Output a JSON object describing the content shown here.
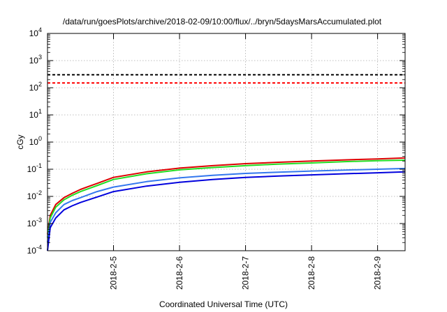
{
  "chart_data": {
    "type": "line",
    "title": "/data/run/goesPlots/archive/2018-02-09/10:00/flux/../bryn/5daysMarsAccumulated.plot",
    "xlabel": "Coordinated Universal Time (UTC)",
    "ylabel": "cGy",
    "yscale": "log",
    "ylim": [
      0.0001,
      10000
    ],
    "xlim": [
      "2018-02-04 00:00",
      "2018-02-09 10:00"
    ],
    "grid": true,
    "x_ticks": [
      "2018-2-5",
      "2018-2-6",
      "2018-2-7",
      "2018-2-8",
      "2018-2-9"
    ],
    "y_ticks": [
      {
        "base": "10",
        "exp": "-4",
        "value": 0.0001
      },
      {
        "base": "10",
        "exp": "-3",
        "value": 0.001
      },
      {
        "base": "10",
        "exp": "-2",
        "value": 0.01
      },
      {
        "base": "10",
        "exp": "-1",
        "value": 0.1
      },
      {
        "base": "10",
        "exp": "0",
        "value": 1
      },
      {
        "base": "10",
        "exp": "1",
        "value": 10
      },
      {
        "base": "10",
        "exp": "2",
        "value": 100
      },
      {
        "base": "10",
        "exp": "3",
        "value": 1000
      },
      {
        "base": "10",
        "exp": "4",
        "value": 10000
      }
    ],
    "reference_lines": [
      {
        "value": 300,
        "color": "#000000",
        "style": "dashed"
      },
      {
        "value": 150,
        "color": "#ff0000",
        "style": "dashed"
      }
    ],
    "series": [
      {
        "color": "#dd0000",
        "x": [
          "2018-02-04 00:00",
          "2018-02-04 01:00",
          "2018-02-04 03:00",
          "2018-02-04 06:00",
          "2018-02-04 09:00",
          "2018-02-04 12:00",
          "2018-02-04 18:00",
          "2018-02-05 00:00",
          "2018-02-05 12:00",
          "2018-02-06 00:00",
          "2018-02-06 12:00",
          "2018-02-07 00:00",
          "2018-02-07 12:00",
          "2018-02-08 00:00",
          "2018-02-08 12:00",
          "2018-02-09 00:00",
          "2018-02-09 10:00"
        ],
        "values": [
          0.0004,
          0.002,
          0.005,
          0.009,
          0.013,
          0.018,
          0.03,
          0.05,
          0.08,
          0.11,
          0.135,
          0.16,
          0.18,
          0.2,
          0.22,
          0.24,
          0.26
        ]
      },
      {
        "color": "#22dd22",
        "x": [
          "2018-02-04 00:00",
          "2018-02-04 01:00",
          "2018-02-04 03:00",
          "2018-02-04 06:00",
          "2018-02-04 09:00",
          "2018-02-04 12:00",
          "2018-02-04 18:00",
          "2018-02-05 00:00",
          "2018-02-05 12:00",
          "2018-02-06 00:00",
          "2018-02-06 12:00",
          "2018-02-07 00:00",
          "2018-02-07 12:00",
          "2018-02-08 00:00",
          "2018-02-08 12:00",
          "2018-02-09 00:00",
          "2018-02-09 10:00"
        ],
        "values": [
          0.0003,
          0.0016,
          0.004,
          0.0075,
          0.011,
          0.015,
          0.025,
          0.042,
          0.068,
          0.095,
          0.115,
          0.135,
          0.155,
          0.17,
          0.19,
          0.205,
          0.215
        ]
      },
      {
        "color": "#3377ee",
        "x": [
          "2018-02-04 00:00",
          "2018-02-04 01:00",
          "2018-02-04 03:00",
          "2018-02-04 06:00",
          "2018-02-04 09:00",
          "2018-02-04 12:00",
          "2018-02-04 18:00",
          "2018-02-05 00:00",
          "2018-02-05 12:00",
          "2018-02-06 00:00",
          "2018-02-06 12:00",
          "2018-02-07 00:00",
          "2018-02-07 12:00",
          "2018-02-08 00:00",
          "2018-02-08 12:00",
          "2018-02-09 00:00",
          "2018-02-09 10:00"
        ],
        "values": [
          0.0002,
          0.0011,
          0.0025,
          0.005,
          0.007,
          0.009,
          0.015,
          0.022,
          0.035,
          0.048,
          0.06,
          0.07,
          0.078,
          0.086,
          0.093,
          0.1,
          0.107
        ]
      },
      {
        "color": "#0000dd",
        "x": [
          "2018-02-04 00:00",
          "2018-02-04 01:00",
          "2018-02-04 03:00",
          "2018-02-04 06:00",
          "2018-02-04 09:00",
          "2018-02-04 12:00",
          "2018-02-04 18:00",
          "2018-02-05 00:00",
          "2018-02-05 12:00",
          "2018-02-06 00:00",
          "2018-02-06 12:00",
          "2018-02-07 00:00",
          "2018-02-07 12:00",
          "2018-02-08 00:00",
          "2018-02-08 12:00",
          "2018-02-09 00:00",
          "2018-02-09 10:00"
        ],
        "values": [
          0.0001,
          0.0007,
          0.0016,
          0.0032,
          0.0045,
          0.006,
          0.0095,
          0.015,
          0.024,
          0.033,
          0.042,
          0.05,
          0.056,
          0.062,
          0.068,
          0.074,
          0.08
        ]
      }
    ]
  }
}
